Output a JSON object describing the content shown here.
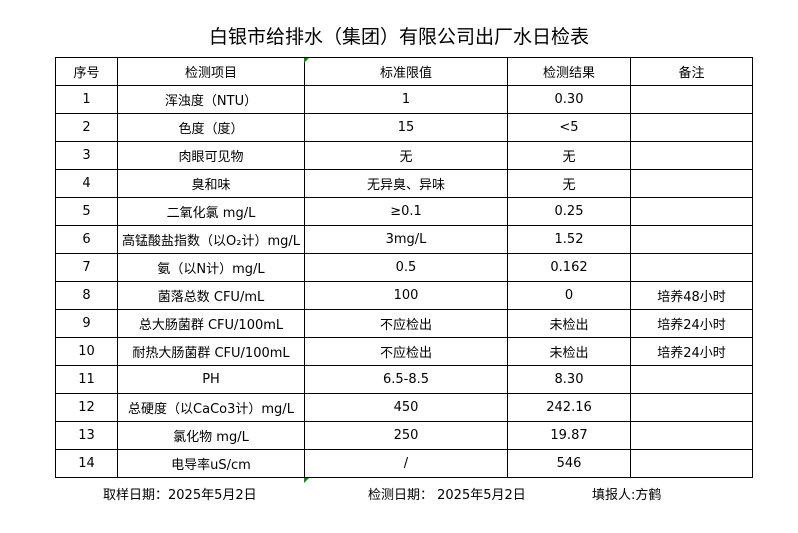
{
  "title": "白银市给排水（集团）有限公司出厂水日检表",
  "headers": [
    "序号",
    "检测项目",
    "标准限值",
    "检测结果",
    "备注"
  ],
  "rows": [
    [
      "1",
      "浑浊度（NTU）",
      "1",
      "0.30",
      ""
    ],
    [
      "2",
      "色度（度）",
      "15",
      "<5",
      ""
    ],
    [
      "3",
      "肉眼可见物",
      "无",
      "无",
      ""
    ],
    [
      "4",
      "臭和味",
      "无异臭、异味",
      "无",
      ""
    ],
    [
      "5",
      "二氧化氯 mg/L",
      "≥0.1",
      "0.25",
      ""
    ],
    [
      "6",
      "高锰酸盐指数（以O₂计）mg/L",
      "3mg/L",
      "1.52",
      ""
    ],
    [
      "7",
      "氨（以N计）mg/L",
      "0.5",
      "0.162",
      ""
    ],
    [
      "8",
      "菌落总数 CFU/mL",
      "100",
      "0",
      "培养48小时"
    ],
    [
      "9",
      "总大肠菌群 CFU/100mL",
      "不应检出",
      "未检出",
      "培养24小时"
    ],
    [
      "10",
      "耐热大肠菌群 CFU/100mL",
      "不应检出",
      "未检出",
      "培养24小时"
    ],
    [
      "11",
      "PH",
      "6.5-8.5",
      "8.30",
      ""
    ],
    [
      "12",
      "总硬度（以CaCo3计）mg/L",
      "450",
      "242.16",
      ""
    ],
    [
      "13",
      "氯化物 mg/L",
      "250",
      "19.87",
      ""
    ],
    [
      "14",
      "电导率uS/cm",
      "/",
      "546",
      ""
    ]
  ],
  "footer": {
    "sample_date": "取样日期：2025年5月2日",
    "test_date": "检测日期：  2025年5月2日",
    "reporter": "填报人:方鹤"
  }
}
